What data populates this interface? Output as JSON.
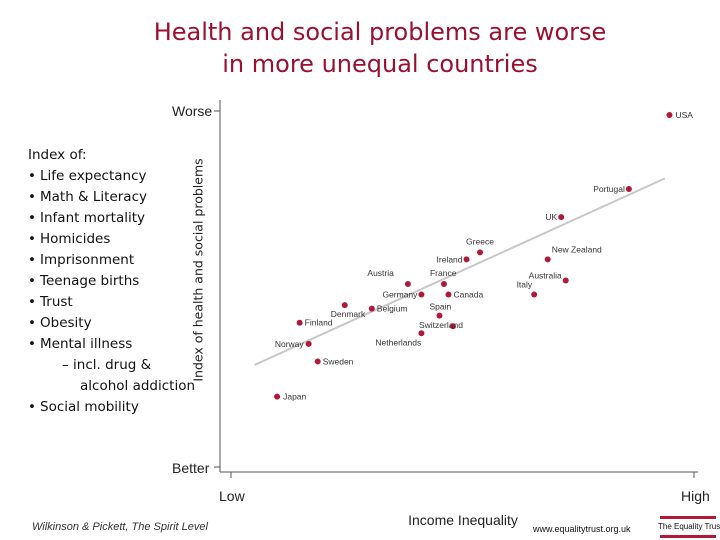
{
  "title_line1": "Health and social problems are worse",
  "title_line2": "in more unequal countries",
  "legend": {
    "heading": "Index of:",
    "items": [
      "Life expectancy",
      "Math & Literacy",
      "Infant mortality",
      "Homicides",
      "Imprisonment",
      "Teenage births",
      "Trust",
      "Obesity",
      "Mental illness"
    ],
    "sub1": "– incl. drug &",
    "sub2": "alcohol addiction",
    "last": "Social mobility"
  },
  "credit": "Wilkinson & Pickett, The Spirit Level",
  "url": "www.equalitytrust.org.uk",
  "logo_text": "The Equality Trust",
  "chart_data": {
    "type": "scatter",
    "title": "Health and social problems are worse in more unequal countries",
    "xlabel": "Income Inequality",
    "ylabel": "Index of health and social problems",
    "x_low_label": "Low",
    "x_high_label": "High",
    "y_top_label": "Worse",
    "y_bottom_label": "Better",
    "xlim": [
      0,
      100
    ],
    "ylim": [
      0,
      100
    ],
    "point_color": "#b01a38",
    "trend_color": "#c8c8c8",
    "trendline": [
      [
        5,
        27
      ],
      [
        96,
        80
      ]
    ],
    "points": [
      {
        "label": "USA",
        "x": 97,
        "y": 98
      },
      {
        "label": "Portugal",
        "x": 88,
        "y": 77
      },
      {
        "label": "UK",
        "x": 73,
        "y": 69
      },
      {
        "label": "Greece",
        "x": 55,
        "y": 59
      },
      {
        "label": "Ireland",
        "x": 52,
        "y": 57
      },
      {
        "label": "New Zealand",
        "x": 70,
        "y": 57
      },
      {
        "label": "Australia",
        "x": 74,
        "y": 51
      },
      {
        "label": "Italy",
        "x": 67,
        "y": 47
      },
      {
        "label": "Austria",
        "x": 39,
        "y": 50
      },
      {
        "label": "France",
        "x": 47,
        "y": 50
      },
      {
        "label": "Germany",
        "x": 42,
        "y": 47
      },
      {
        "label": "Canada",
        "x": 48,
        "y": 47
      },
      {
        "label": "Denmark",
        "x": 25,
        "y": 44
      },
      {
        "label": "Belgium",
        "x": 31,
        "y": 43
      },
      {
        "label": "Spain",
        "x": 46,
        "y": 41
      },
      {
        "label": "Switzerland",
        "x": 49,
        "y": 38
      },
      {
        "label": "Finland",
        "x": 15,
        "y": 39
      },
      {
        "label": "Netherlands",
        "x": 42,
        "y": 36
      },
      {
        "label": "Norway",
        "x": 17,
        "y": 33
      },
      {
        "label": "Sweden",
        "x": 19,
        "y": 28
      },
      {
        "label": "Japan",
        "x": 10,
        "y": 18
      }
    ]
  }
}
